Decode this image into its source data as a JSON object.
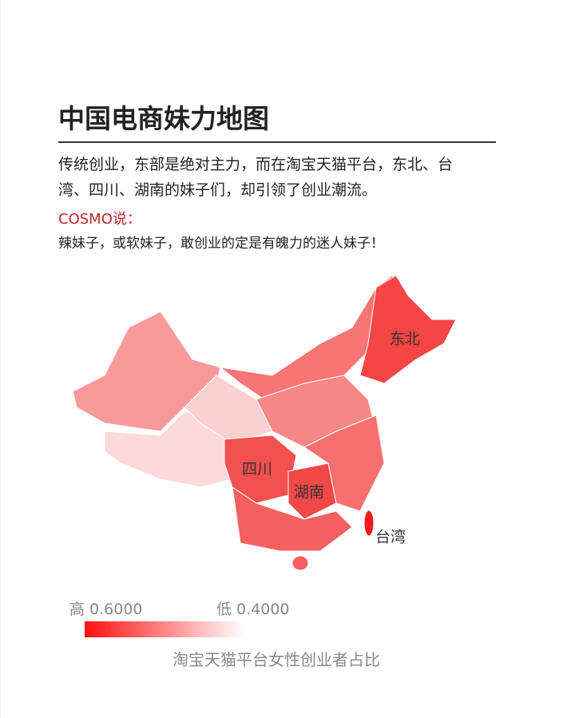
{
  "header": {
    "title": "中国电商妹力地图",
    "intro": "传统创业，东部是绝对主力，而在淘宝天猫平台，东北、台湾、四川、湖南的妹子们，却引领了创业潮流。"
  },
  "cosmo": {
    "label": "COSMO说：",
    "text": "辣妹子，或软妹子，敢创业的定是有魄力的迷人妹子！"
  },
  "map": {
    "labels": [
      "东北",
      "四川",
      "湖南",
      "台湾"
    ]
  },
  "legend": {
    "high": "高 0.6000",
    "low": "低 0.4000",
    "caption": "淘宝天猫平台女性创业者占比"
  }
}
